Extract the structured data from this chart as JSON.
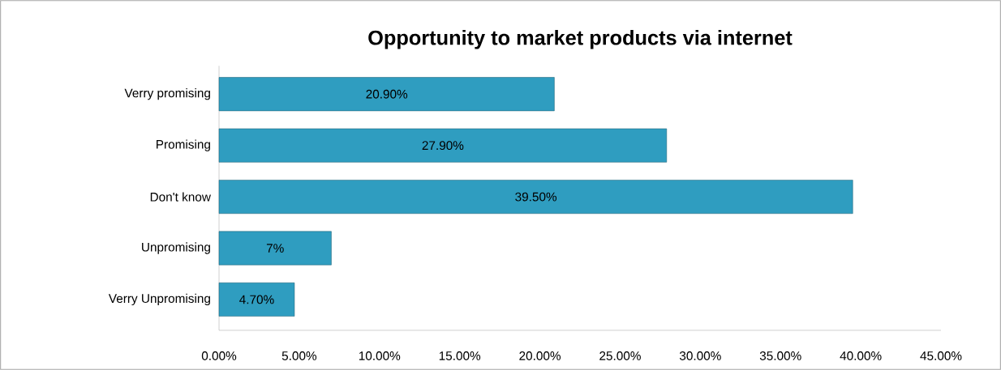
{
  "chart_data": {
    "type": "bar",
    "orientation": "horizontal",
    "title": "Opportunity to market products via internet",
    "categories": [
      "Verry promising",
      "Promising",
      "Don't know",
      "Unpromising",
      "Verry Unpromising"
    ],
    "values": [
      20.9,
      27.9,
      39.5,
      7,
      4.7
    ],
    "value_labels": [
      "20.90%",
      "27.90%",
      "39.50%",
      "7%",
      "4.70%"
    ],
    "color": "#2f9dc0",
    "xlim": [
      0,
      45
    ],
    "xticks": [
      {
        "value": 0,
        "label": "0.00%"
      },
      {
        "value": 5,
        "label": "5.00%"
      },
      {
        "value": 10,
        "label": "10.00%"
      },
      {
        "value": 15,
        "label": "15.00%"
      },
      {
        "value": 20,
        "label": "20.00%"
      },
      {
        "value": 25,
        "label": "25.00%"
      },
      {
        "value": 30,
        "label": "30.00%"
      },
      {
        "value": 35,
        "label": "35.00%"
      },
      {
        "value": 40,
        "label": "40.00%"
      },
      {
        "value": 45,
        "label": "45.00%"
      }
    ],
    "grid": false
  }
}
